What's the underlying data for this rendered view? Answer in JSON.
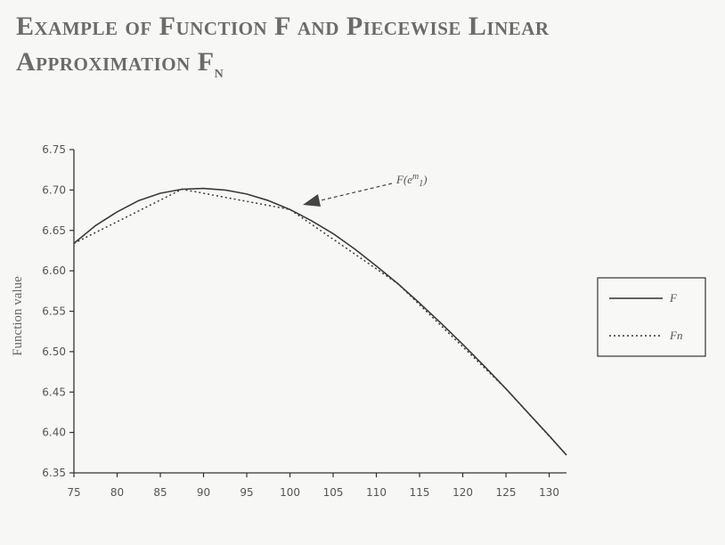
{
  "title": {
    "line1": "Example of Function F and Piecewise Linear",
    "line2_main": "Approximation F",
    "line2_sub": "n"
  },
  "chart_data": {
    "type": "line",
    "ylabel": "Function value",
    "xlabel": "",
    "xlim": [
      75,
      132
    ],
    "ylim": [
      6.35,
      6.75
    ],
    "xticks": [
      75,
      80,
      85,
      90,
      95,
      100,
      105,
      110,
      115,
      120,
      125,
      130
    ],
    "yticks": [
      6.35,
      6.4,
      6.45,
      6.5,
      6.55,
      6.6,
      6.65,
      6.7,
      6.75
    ],
    "grid": false,
    "legend_placement": "right",
    "annotation": {
      "text_main": "F(e",
      "text_sup": "m",
      "text_sub": "1",
      "text_close": ")",
      "point": [
        100,
        6.676
      ]
    },
    "series": [
      {
        "name": "F",
        "style": "solid",
        "x": [
          75,
          77.5,
          80,
          82.5,
          85,
          87.5,
          90,
          92.5,
          95,
          97.5,
          100,
          102.5,
          105,
          107.5,
          110,
          112.5,
          115,
          117.5,
          120,
          122.5,
          125,
          127.5,
          130,
          132
        ],
        "y": [
          6.634,
          6.656,
          6.673,
          6.687,
          6.696,
          6.701,
          6.702,
          6.7,
          6.695,
          6.687,
          6.676,
          6.662,
          6.646,
          6.627,
          6.606,
          6.584,
          6.56,
          6.535,
          6.509,
          6.482,
          6.454,
          6.425,
          6.396,
          6.372
        ]
      },
      {
        "name": "Fn",
        "style": "dotted",
        "x": [
          75,
          87.5,
          100,
          112.5,
          125,
          132
        ],
        "y": [
          6.634,
          6.701,
          6.676,
          6.584,
          6.454,
          6.372
        ]
      }
    ]
  }
}
